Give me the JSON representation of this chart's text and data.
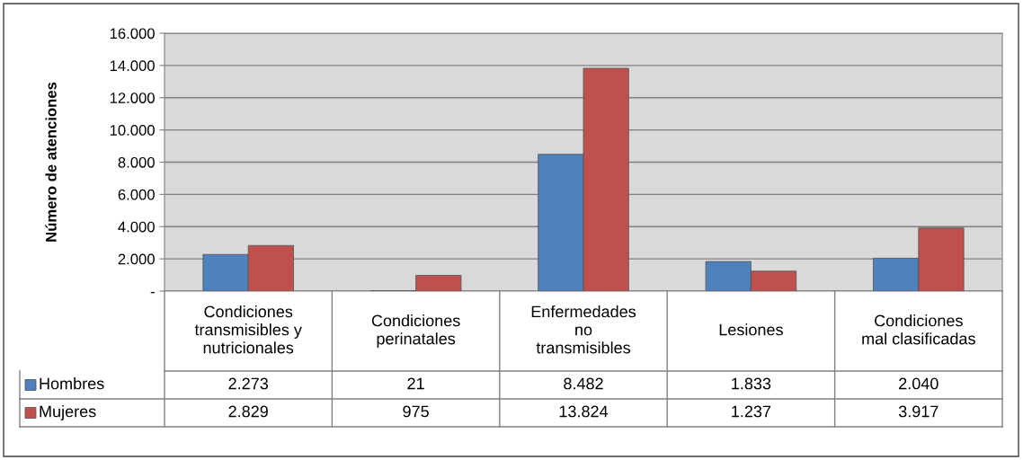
{
  "chart_data": {
    "type": "bar",
    "ylabel": "Número de atenciones",
    "categories": [
      "Condiciones\ntransmisibles y\nnutricionales",
      "Condiciones\nperinatales",
      "Enfermedades\nno\ntransmisibles",
      "Lesiones",
      "Condiciones\nmal clasificadas"
    ],
    "series": [
      {
        "name": "Hombres",
        "color": "#4f81bd",
        "values": [
          2273,
          21,
          8482,
          1833,
          2040
        ],
        "value_labels": [
          "2.273",
          "21",
          "8.482",
          "1.833",
          "2.040"
        ]
      },
      {
        "name": "Mujeres",
        "color": "#c0504d",
        "values": [
          2829,
          975,
          13824,
          1237,
          3917
        ],
        "value_labels": [
          "2.829",
          "975",
          "13.824",
          "1.237",
          "3.917"
        ]
      }
    ],
    "ylim": [
      0,
      16000
    ],
    "yticks": [
      {
        "value": 0,
        "label": "-"
      },
      {
        "value": 2000,
        "label": "2.000"
      },
      {
        "value": 4000,
        "label": "4.000"
      },
      {
        "value": 6000,
        "label": "6.000"
      },
      {
        "value": 8000,
        "label": "8.000"
      },
      {
        "value": 10000,
        "label": "10.000"
      },
      {
        "value": 12000,
        "label": "12.000"
      },
      {
        "value": 14000,
        "label": "14.000"
      },
      {
        "value": 16000,
        "label": "16.000"
      }
    ],
    "grid": "y",
    "legend": "bottom"
  }
}
